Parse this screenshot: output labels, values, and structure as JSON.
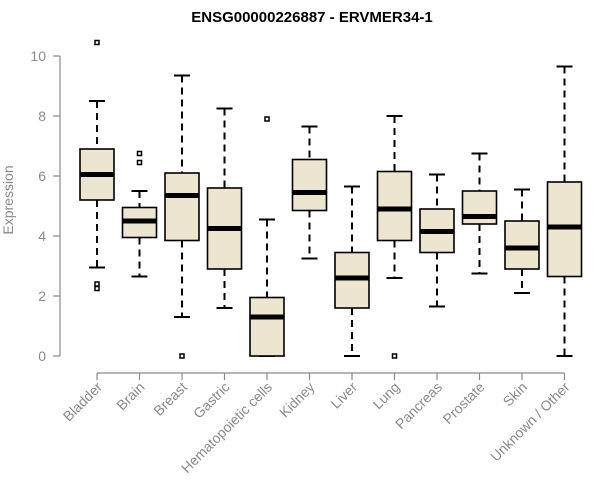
{
  "chart_data": {
    "type": "boxplot",
    "title": "ENSG00000226887 - ERVMER34-1",
    "xlabel": "",
    "ylabel": "Expression",
    "ylim": [
      0,
      10.4
    ],
    "yticks": [
      0,
      2,
      4,
      6,
      8,
      10
    ],
    "grid": false,
    "categories": [
      "Bladder",
      "Brain",
      "Breast",
      "Gastric",
      "Hematopoietic cells",
      "Kidney",
      "Liver",
      "Lung",
      "Pancreas",
      "Prostate",
      "Skin",
      "Unknown / Other"
    ],
    "boxes": [
      {
        "min": 2.95,
        "q1": 5.2,
        "median": 6.05,
        "q3": 6.9,
        "max": 8.5,
        "outliers": [
          10.45,
          2.4,
          2.25
        ]
      },
      {
        "min": 2.65,
        "q1": 3.95,
        "median": 4.5,
        "q3": 4.95,
        "max": 5.5,
        "outliers": [
          6.75,
          6.45
        ]
      },
      {
        "min": 1.3,
        "q1": 3.85,
        "median": 5.35,
        "q3": 6.1,
        "max": 9.35,
        "outliers": [
          0.0
        ]
      },
      {
        "min": 1.6,
        "q1": 2.9,
        "median": 4.25,
        "q3": 5.6,
        "max": 8.25,
        "outliers": []
      },
      {
        "min": 0.0,
        "q1": 0.0,
        "median": 1.3,
        "q3": 1.95,
        "max": 4.55,
        "outliers": [
          7.9
        ]
      },
      {
        "min": 3.25,
        "q1": 4.85,
        "median": 5.45,
        "q3": 6.55,
        "max": 7.65,
        "outliers": []
      },
      {
        "min": 0.0,
        "q1": 1.6,
        "median": 2.6,
        "q3": 3.45,
        "max": 5.65,
        "outliers": []
      },
      {
        "min": 2.6,
        "q1": 3.85,
        "median": 4.9,
        "q3": 6.15,
        "max": 8.0,
        "outliers": [
          0.0
        ]
      },
      {
        "min": 1.65,
        "q1": 3.45,
        "median": 4.15,
        "q3": 4.9,
        "max": 6.05,
        "outliers": []
      },
      {
        "min": 2.75,
        "q1": 4.4,
        "median": 4.65,
        "q3": 5.5,
        "max": 6.75,
        "outliers": []
      },
      {
        "min": 2.1,
        "q1": 2.9,
        "median": 3.6,
        "q3": 4.5,
        "max": 5.55,
        "outliers": []
      },
      {
        "min": 0.0,
        "q1": 2.65,
        "median": 4.3,
        "q3": 5.8,
        "max": 9.65,
        "outliers": []
      }
    ],
    "colors": {
      "box_fill": "#ece5cf",
      "box_stroke": "#000000",
      "axis": "#8a8a8a"
    }
  }
}
